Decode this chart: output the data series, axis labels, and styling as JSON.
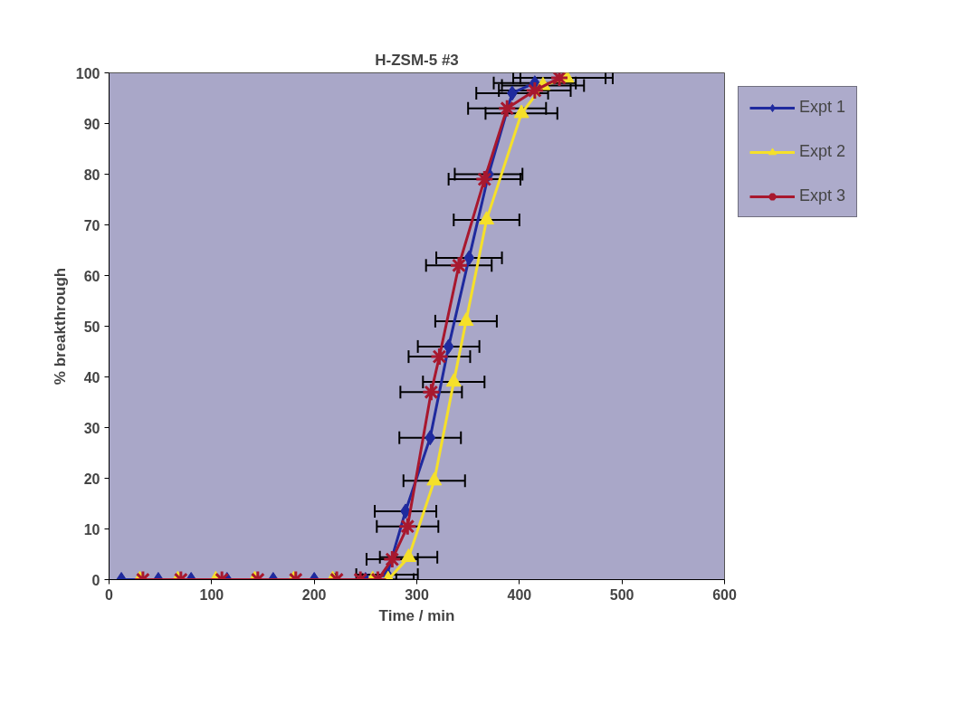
{
  "chart_data": {
    "type": "line",
    "title": "H-ZSM-5 #3",
    "xlabel": "Time / min",
    "ylabel": "% breakthrough",
    "xlim": [
      0,
      600
    ],
    "xticks": [
      0,
      100,
      200,
      300,
      400,
      500,
      600
    ],
    "ylim": [
      0,
      100
    ],
    "yticks": [
      0,
      10,
      20,
      30,
      40,
      50,
      60,
      70,
      80,
      90,
      100
    ],
    "grid": false,
    "legend": "right",
    "line_style": "solid",
    "series": [
      {
        "name": "Expt 1",
        "color": "#1f2a9e",
        "marker": "diamond",
        "x": [
          12,
          48,
          80,
          115,
          160,
          200,
          250,
          271,
          289,
          313,
          331,
          351,
          370,
          393,
          415
        ],
        "values": [
          0,
          0,
          0,
          0,
          0,
          0,
          0,
          1,
          13.5,
          28,
          46,
          63.5,
          80,
          96,
          98
        ],
        "xerrors": [
          null,
          null,
          null,
          null,
          null,
          null,
          30,
          30,
          30,
          30,
          30,
          32,
          33,
          35,
          40
        ]
      },
      {
        "name": "Expt 2",
        "color": "#f5e02a",
        "marker": "triangle",
        "x": [
          30,
          67,
          104,
          142,
          180,
          218,
          257,
          272,
          292,
          317,
          336,
          348,
          368,
          402,
          423,
          446
        ],
        "values": [
          0,
          0,
          0,
          0,
          0,
          0,
          0,
          0,
          4.4,
          19.5,
          39,
          51,
          71,
          92,
          97.5,
          99
        ],
        "xerrors": [
          null,
          null,
          null,
          null,
          null,
          null,
          null,
          25,
          28,
          30,
          30,
          30,
          32,
          35,
          40,
          45
        ]
      },
      {
        "name": "Expt 3",
        "color": "#a8182e",
        "marker": "cross",
        "x": [
          33,
          70,
          110,
          145,
          182,
          222,
          245,
          262,
          276,
          291,
          314,
          322,
          341,
          366,
          388,
          415,
          439
        ],
        "values": [
          0,
          0,
          0,
          0,
          0,
          0,
          0,
          0,
          4,
          10.5,
          37,
          44,
          62,
          79,
          93,
          96.5,
          99
        ],
        "xerrors": [
          null,
          null,
          null,
          null,
          null,
          null,
          null,
          null,
          25,
          30,
          30,
          30,
          32,
          35,
          38,
          35,
          45
        ]
      }
    ]
  }
}
